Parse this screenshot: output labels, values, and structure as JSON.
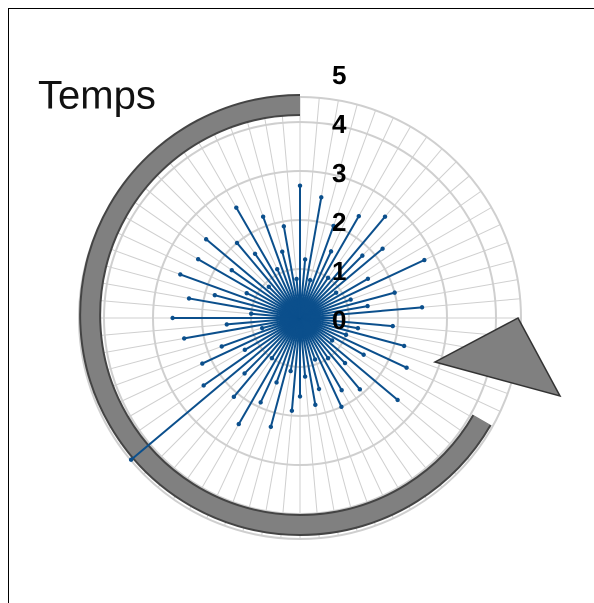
{
  "chart_data": {
    "type": "radar",
    "title": "Temps",
    "values": [
      2.7,
      1.2,
      2.5,
      0.8,
      2.0,
      1.5,
      2.4,
      1.0,
      2.7,
      1.8,
      2.2,
      0.9,
      1.6,
      2.8,
      1.1,
      2.0,
      1.4,
      2.5,
      0.7,
      1.9,
      1.2,
      2.2,
      1.0,
      2.4,
      1.5,
      0.8,
      2.6,
      1.3,
      1.9,
      1.0,
      1.7,
      2.0,
      0.9,
      1.5,
      1.8,
      1.2,
      1.6,
      1.9,
      1.1,
      2.3,
      1.4,
      1.9,
      2.5,
      1.0,
      2.1,
      1.6,
      4.5,
      2.4,
      1.3,
      2.2,
      1.7,
      0.8,
      2.4,
      1.5,
      2.6,
      1.0,
      2.3,
      1.8,
      2.6,
      1.2,
      2.4,
      1.7,
      2.5,
      0.9,
      2.0,
      1.6,
      2.6,
      1.1,
      2.2,
      1.4,
      1.9,
      0.8
    ],
    "color": "#0b4f8c",
    "ylim": [
      0,
      5
    ],
    "yticks": [
      0,
      1,
      2,
      3,
      4,
      5
    ],
    "grid": true
  }
}
